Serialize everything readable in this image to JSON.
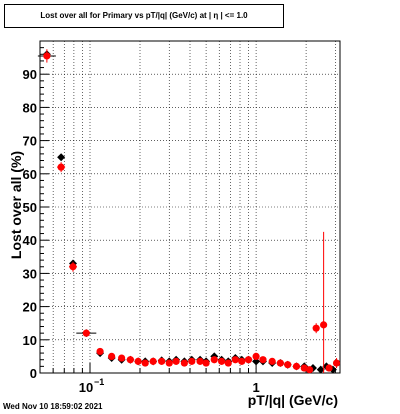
{
  "title": "Lost over all for Primary vs pT/|q| (GeV/c) at |  η | <= 1.0",
  "footer": "Wed Nov 10 18:59:02 2021",
  "chart_data": {
    "type": "scatter",
    "title": "Lost over all for Primary vs pT/|q| (GeV/c) at |  η | <= 1.0",
    "xlabel": "pT/|q| (GeV/c)",
    "ylabel": "Lost over all (%)",
    "x_scale": "log",
    "xlim": [
      0.05,
      3.2
    ],
    "ylim": [
      0,
      100
    ],
    "grid": true,
    "y_ticks": [
      0,
      10,
      20,
      30,
      40,
      50,
      60,
      70,
      80,
      90
    ],
    "x_tick_labels": [
      {
        "value": 0.1,
        "label": "10",
        "exp": "−1"
      },
      {
        "value": 1,
        "label": "1",
        "exp": ""
      }
    ],
    "colors": {
      "series_black": "#000000",
      "series_red": "#ff0000"
    },
    "series": [
      {
        "x": [
          0.055,
          0.067,
          0.079,
          0.095,
          0.115,
          0.135,
          0.155,
          0.175,
          0.195,
          0.215,
          0.24,
          0.27,
          0.3,
          0.33,
          0.37,
          0.41,
          0.46,
          0.5,
          0.56,
          0.62,
          0.68,
          0.75,
          0.82,
          0.9,
          1.0,
          1.1,
          1.25,
          1.4,
          1.55,
          1.75,
          1.95,
          2.2,
          2.45,
          2.65,
          2.9
        ],
        "y": [
          96,
          65,
          33,
          12,
          6,
          4.5,
          4,
          4,
          3.5,
          3.5,
          3.5,
          3.8,
          3.5,
          4,
          3.5,
          4,
          4,
          3.5,
          5,
          4,
          3.5,
          4.5,
          4,
          4,
          3.5,
          3.5,
          3,
          3,
          2.5,
          2,
          2,
          1.5,
          1,
          2,
          1
        ]
      },
      {
        "x": [
          0.055,
          0.067,
          0.079,
          0.095,
          0.115,
          0.135,
          0.155,
          0.175,
          0.195,
          0.215,
          0.24,
          0.27,
          0.3,
          0.33,
          0.37,
          0.41,
          0.46,
          0.5,
          0.56,
          0.62,
          0.68,
          0.75,
          0.82,
          0.9,
          1.0,
          1.1,
          1.25,
          1.4,
          1.55,
          1.75,
          1.95,
          2.1,
          2.3,
          2.55,
          2.75,
          3.05
        ],
        "y": [
          95.5,
          62,
          32,
          12,
          6.5,
          5,
          4.5,
          4,
          3.5,
          3,
          3.5,
          3.5,
          3,
          3.5,
          3,
          3.5,
          3.5,
          3,
          4,
          3.5,
          3,
          4,
          3.5,
          4,
          5,
          4,
          3.5,
          3,
          2.5,
          2,
          1.5,
          1,
          13.5,
          14.5,
          1.5,
          3
        ],
        "yerr": [
          2,
          1.5,
          1.5,
          1,
          0.8,
          0.6,
          0.5,
          0.5,
          0.5,
          0.5,
          0.5,
          0.5,
          0.5,
          0.5,
          0.5,
          0.5,
          0.5,
          0.5,
          0.6,
          0.6,
          0.6,
          0.6,
          0.6,
          0.7,
          0.8,
          0.8,
          0.8,
          0.8,
          0.8,
          0.8,
          0.8,
          0.8,
          1.5,
          28,
          1,
          1.5
        ]
      }
    ]
  }
}
